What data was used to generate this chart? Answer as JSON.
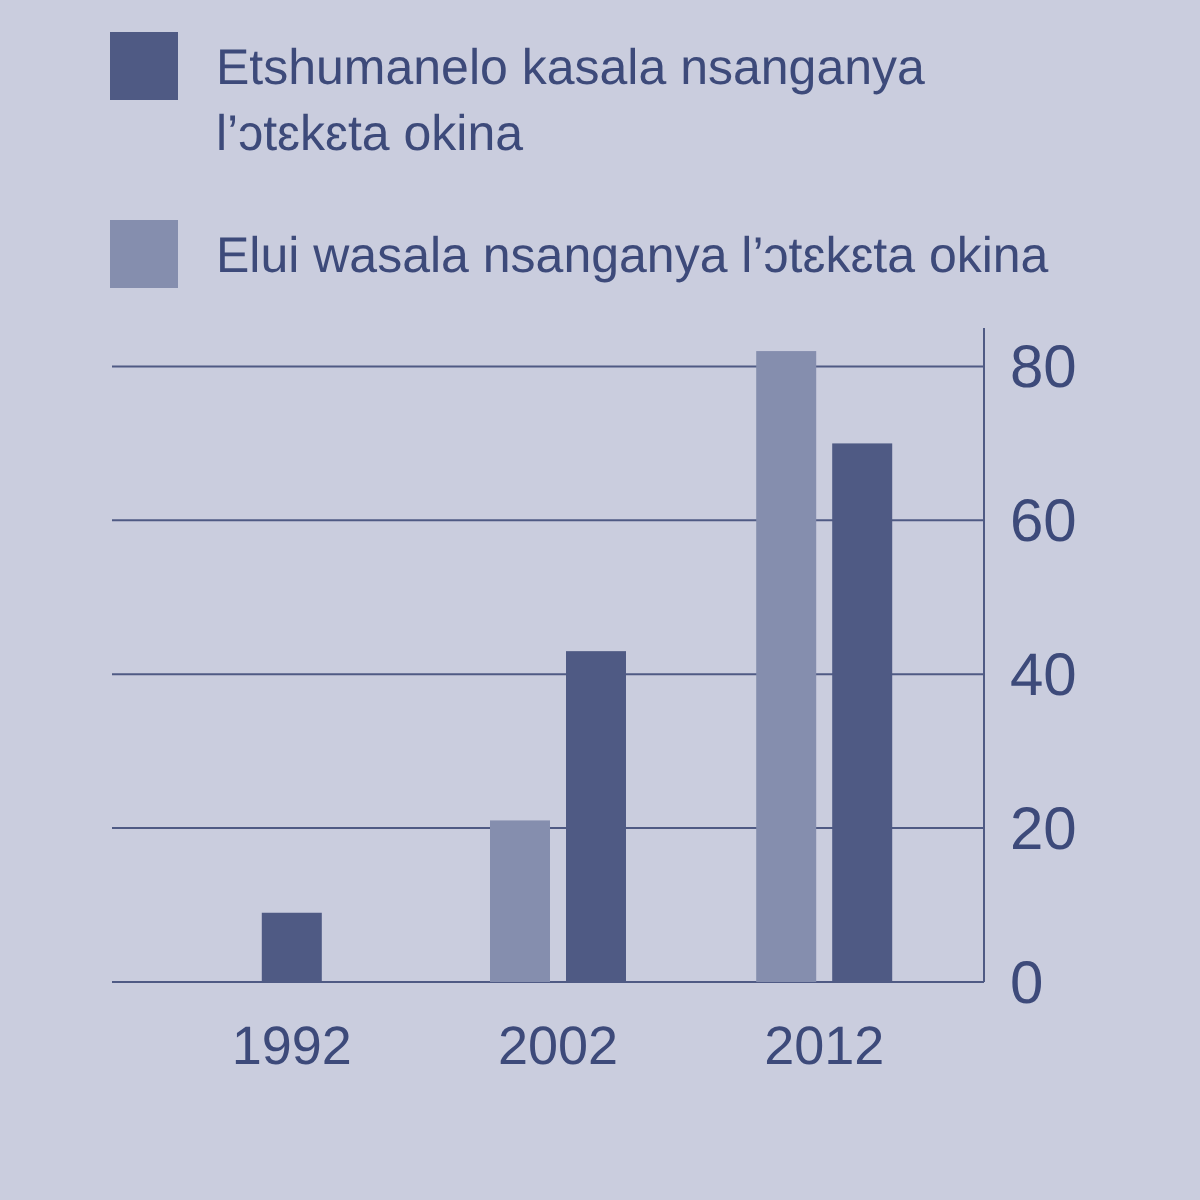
{
  "chart_data": {
    "type": "bar",
    "categories": [
      "1992",
      "2002",
      "2012"
    ],
    "series": [
      {
        "name": "Etshumanelo kasala nsanganya l’ɔtɛkɛta okina",
        "color": "#4f5a84",
        "values": [
          9,
          43,
          70
        ]
      },
      {
        "name": "Elui wasala nsanganya l’ɔtɛkɛta okina",
        "color": "#858eae",
        "values": [
          null,
          21,
          82
        ]
      }
    ],
    "ylim": [
      0,
      85
    ],
    "yticks": [
      0,
      20,
      40,
      60,
      80
    ],
    "grid": "y",
    "legend": "top"
  }
}
